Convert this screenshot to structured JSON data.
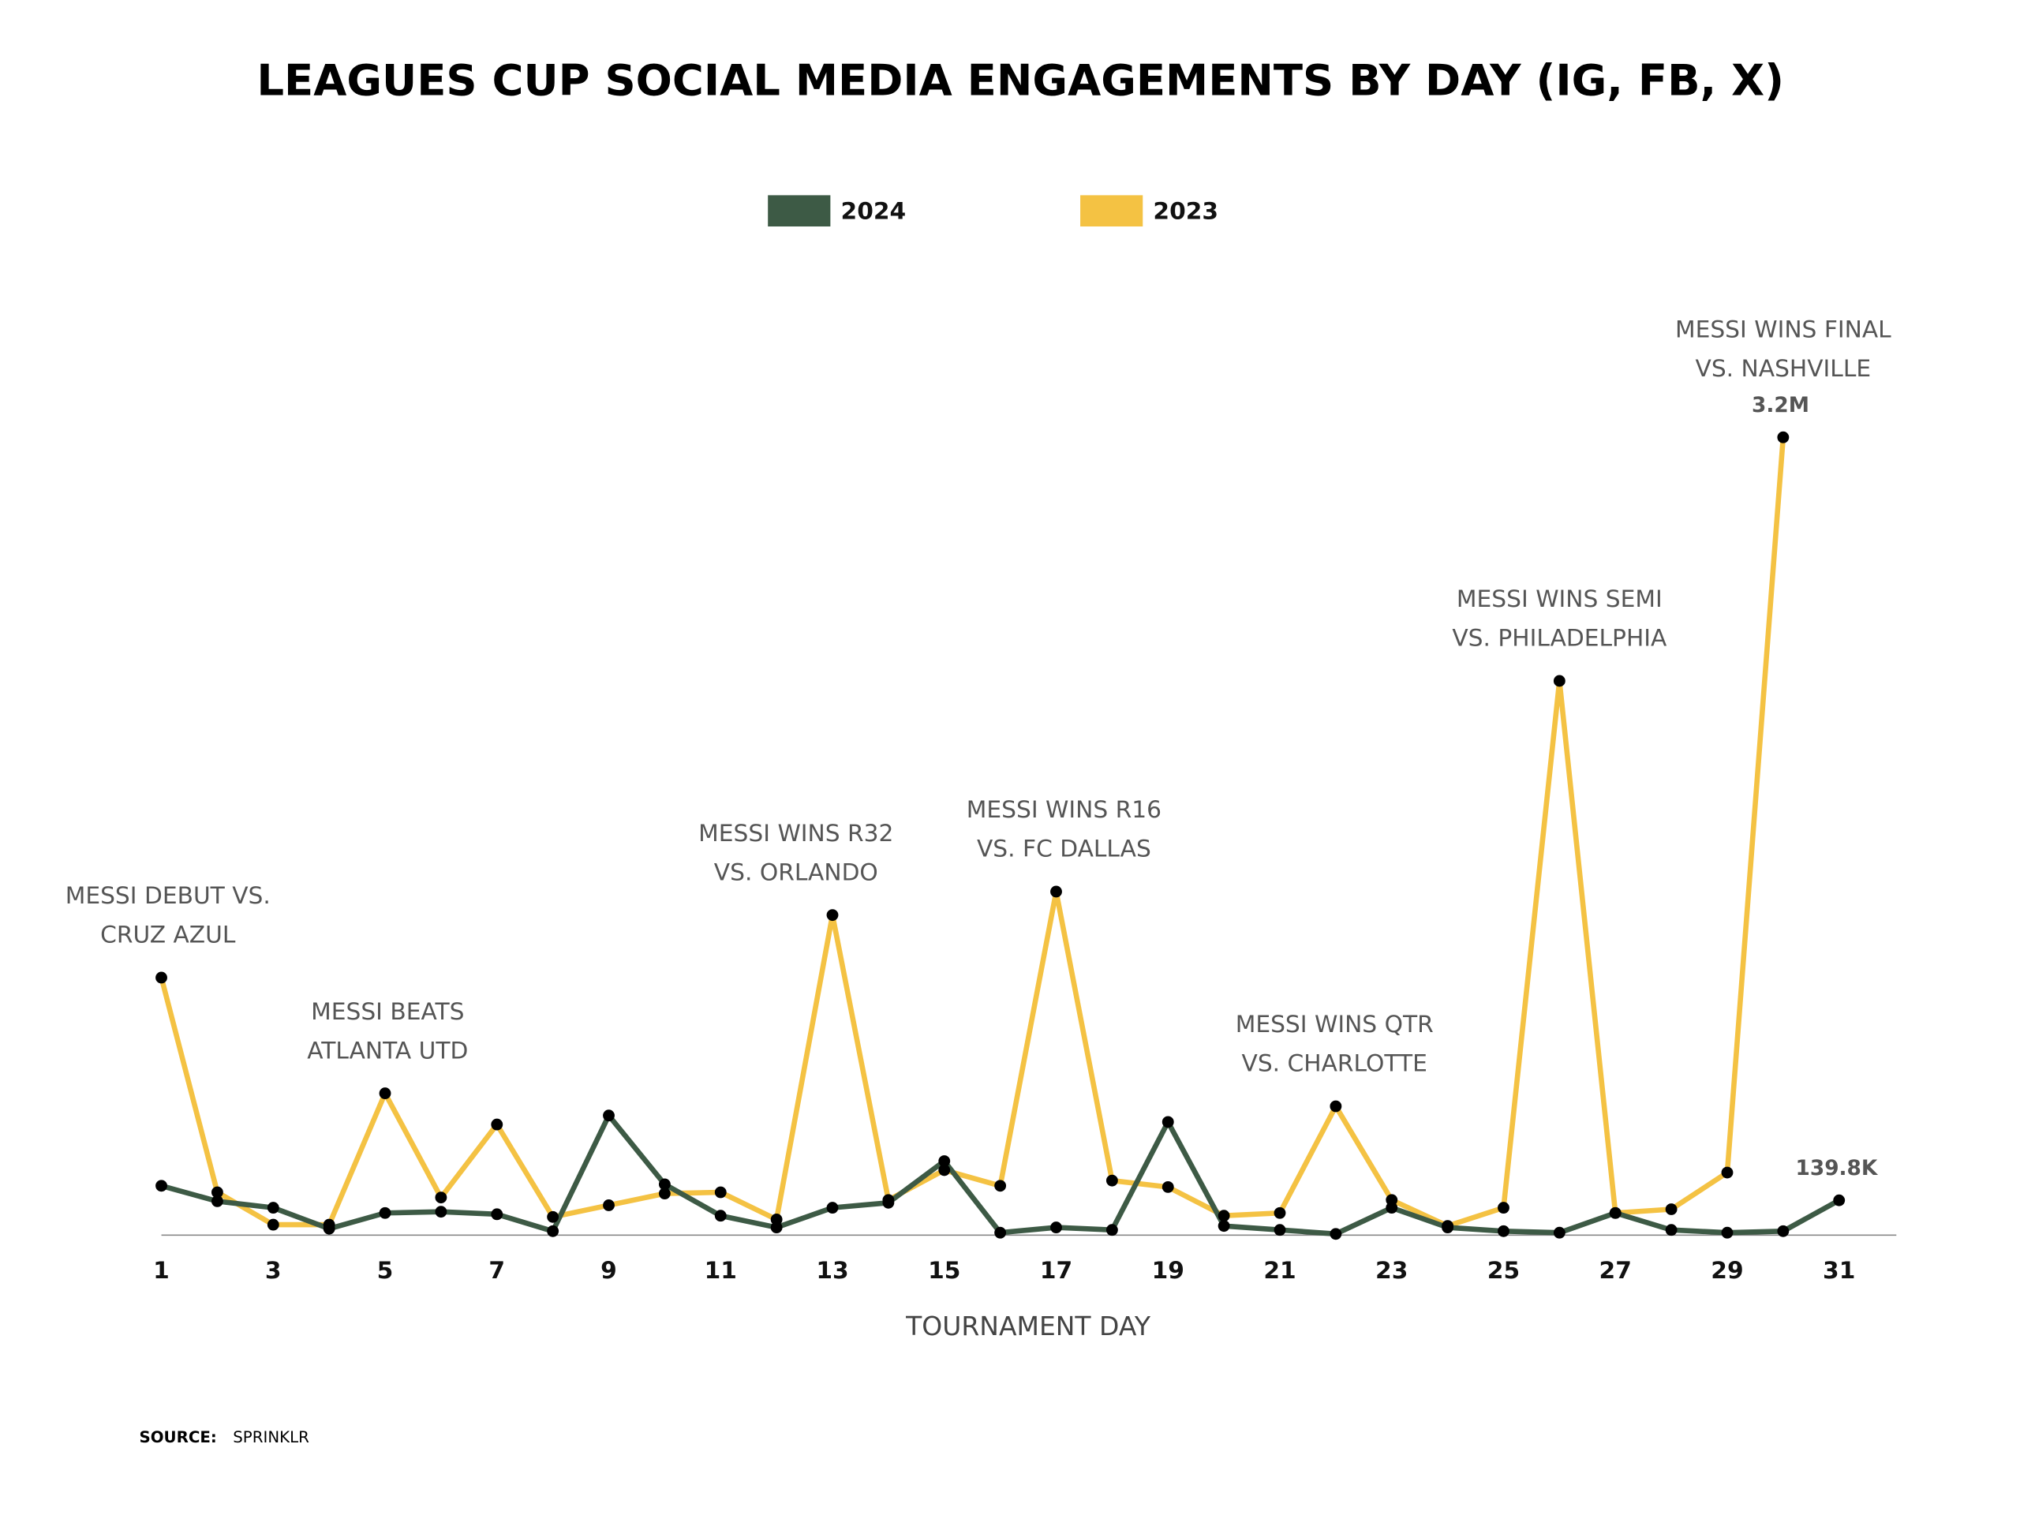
{
  "chart_data": {
    "type": "line",
    "title": "LEAGUES CUP SOCIAL MEDIA ENGAGEMENTS BY DAY (IG, FB, X)",
    "x_label": "TOURNAMENT DAY",
    "x": [
      1,
      2,
      3,
      4,
      5,
      6,
      7,
      8,
      9,
      10,
      11,
      12,
      13,
      14,
      15,
      16,
      17,
      18,
      19,
      20,
      21,
      22,
      23,
      24,
      25,
      26,
      27,
      28,
      29,
      30,
      31
    ],
    "xlim": [
      1,
      31
    ],
    "xticks": [
      1,
      3,
      5,
      7,
      9,
      11,
      13,
      15,
      17,
      19,
      21,
      23,
      25,
      27,
      29,
      31
    ],
    "ylim": [
      0,
      3200000
    ],
    "legend": "top",
    "series": [
      {
        "name": "2024",
        "color": "#3d5a45",
        "values": [
          198000,
          136000,
          110000,
          26000,
          89000,
          94000,
          84000,
          16000,
          480000,
          204000,
          78000,
          31000,
          110000,
          130000,
          297000,
          10000,
          31000,
          21000,
          454000,
          37000,
          21000,
          5000,
          110000,
          31000,
          16000,
          10000,
          89000,
          21000,
          10000,
          16000,
          139800
        ],
        "value_labels": [
          null,
          null,
          null,
          null,
          null,
          null,
          null,
          null,
          null,
          null,
          null,
          null,
          null,
          null,
          null,
          null,
          null,
          null,
          null,
          null,
          null,
          null,
          null,
          null,
          null,
          null,
          null,
          null,
          null,
          null,
          "139.8K"
        ]
      },
      {
        "name": "2023",
        "color": "#f4c243",
        "values": [
          1033000,
          172000,
          42000,
          42000,
          569000,
          151000,
          444000,
          73000,
          120000,
          167000,
          172000,
          63000,
          1284000,
          141000,
          261000,
          198000,
          1378000,
          219000,
          193000,
          78000,
          89000,
          517000,
          141000,
          37000,
          110000,
          2223000,
          89000,
          104000,
          251000,
          3200000,
          null
        ],
        "value_labels": [
          null,
          null,
          null,
          null,
          null,
          null,
          null,
          null,
          null,
          null,
          null,
          null,
          null,
          null,
          null,
          null,
          null,
          null,
          null,
          null,
          null,
          null,
          null,
          null,
          null,
          null,
          null,
          null,
          null,
          "3.2M",
          null
        ]
      }
    ],
    "annotations": [
      {
        "x": 1,
        "text": [
          "MESSI DEBUT VS.",
          "CRUZ AZUL"
        ]
      },
      {
        "x": 5,
        "text": [
          "MESSI BEATS",
          "ATLANTA UTD"
        ]
      },
      {
        "x": 13,
        "text": [
          "MESSI WINS R32",
          "VS. ORLANDO"
        ]
      },
      {
        "x": 17,
        "text": [
          "MESSI WINS R16",
          "VS. FC DALLAS"
        ]
      },
      {
        "x": 22,
        "text": [
          "MESSI WINS QTR",
          "VS. CHARLOTTE"
        ]
      },
      {
        "x": 26,
        "text": [
          "MESSI WINS SEMI",
          "VS. PHILADELPHIA"
        ]
      },
      {
        "x": 30,
        "text": [
          "MESSI WINS FINAL",
          "VS. NASHVILLE"
        ]
      }
    ],
    "source_label": "SOURCE:",
    "source": "SPRINKLR"
  }
}
